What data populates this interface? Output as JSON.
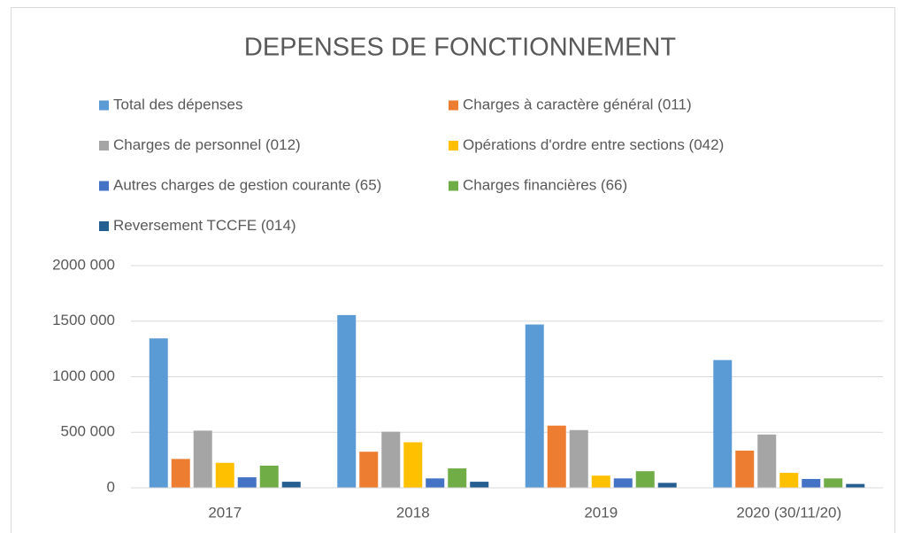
{
  "chart_data": {
    "type": "bar",
    "title": "DEPENSES DE FONCTIONNEMENT",
    "categories": [
      "2017",
      "2018",
      "2019",
      "2020 (30/11/20)"
    ],
    "series": [
      {
        "name": "Total des dépenses",
        "color": "#5b9bd5",
        "values": [
          1345000,
          1555000,
          1470000,
          1150000
        ]
      },
      {
        "name": "Charges à caractère général (011)",
        "color": "#ed7d31",
        "values": [
          260000,
          325000,
          560000,
          335000
        ]
      },
      {
        "name": "Charges de personnel (012)",
        "color": "#a5a5a5",
        "values": [
          515000,
          505000,
          520000,
          480000
        ]
      },
      {
        "name": "Opérations d'ordre entre sections (042)",
        "color": "#ffc000",
        "values": [
          225000,
          410000,
          110000,
          135000
        ]
      },
      {
        "name": "Autres charges de gestion courante (65)",
        "color": "#4472c4",
        "values": [
          95000,
          85000,
          85000,
          80000
        ]
      },
      {
        "name": "Charges financières (66)",
        "color": "#70ad47",
        "values": [
          200000,
          175000,
          150000,
          85000
        ]
      },
      {
        "name": "Reversement TCCFE (014)",
        "color": "#255e91",
        "values": [
          55000,
          55000,
          45000,
          35000
        ]
      }
    ],
    "ylim": [
      0,
      2000000
    ],
    "yticks": [
      0,
      {
        "value": 500000,
        "label": "500 000"
      },
      {
        "value": 1000000,
        "label": "1000 000"
      },
      {
        "value": 1500000,
        "label": "1500 000"
      },
      {
        "value": 2000000,
        "label": "2000 000"
      }
    ],
    "grid": true,
    "legend": "top"
  }
}
